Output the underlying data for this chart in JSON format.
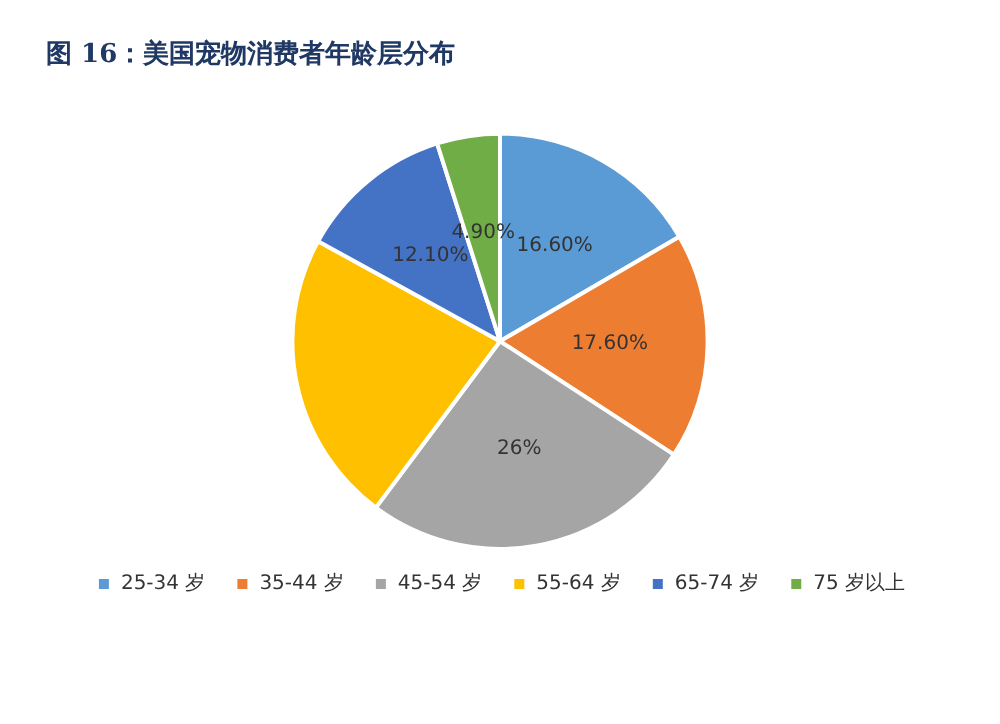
{
  "chart_data": {
    "type": "pie",
    "title": "图 16：美国宠物消费者年龄层分布",
    "categories": [
      "25-34 岁",
      "35-44 岁",
      "45-54 岁",
      "55-64 岁",
      "65-74 岁",
      "75 岁以上"
    ],
    "values": [
      16.6,
      17.6,
      26,
      22.8,
      12.1,
      4.9
    ],
    "colors": [
      "#5b9bd5",
      "#ed7d31",
      "#a5a5a5",
      "#ffc000",
      "#4472c4",
      "#70ad47"
    ],
    "value_labels": [
      "16.60%",
      "17.60%",
      "26%",
      null,
      "12.10%",
      "4.90%"
    ],
    "legend": "bottom"
  }
}
